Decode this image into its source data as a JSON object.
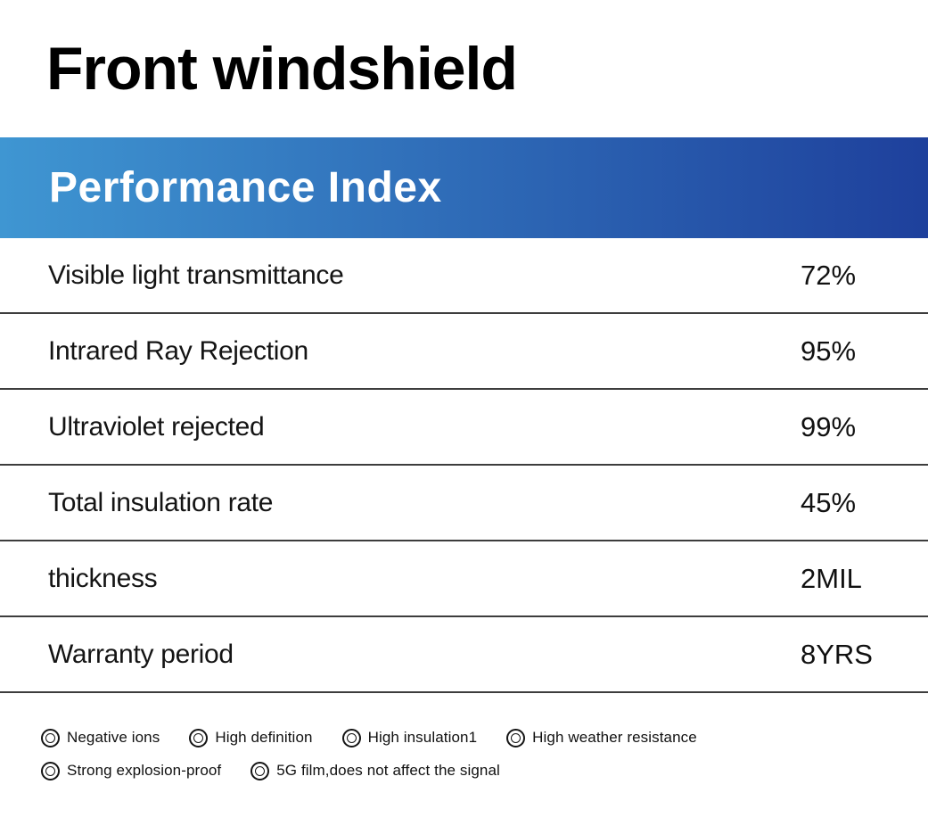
{
  "page": {
    "title": "Front windshield"
  },
  "header": {
    "title": "Performance Index",
    "gradient_left": "#3F96D2",
    "gradient_right": "#1E409C",
    "text_color": "#FFFFFF"
  },
  "table": {
    "divider_color": "#3D3D3D",
    "rows": [
      {
        "label": "Visible light transmittance",
        "value": "72%"
      },
      {
        "label": "Intrared Ray Rejection",
        "value": "95%"
      },
      {
        "label": "Ultraviolet rejected",
        "value": "99%"
      },
      {
        "label": "Total insulation rate",
        "value": "45%"
      },
      {
        "label": "thickness",
        "value": "2MIL"
      },
      {
        "label": "Warranty period",
        "value": "8YRS"
      }
    ]
  },
  "features": {
    "icon": "double-circle-icon",
    "items": [
      {
        "label": "Negative ions"
      },
      {
        "label": "High definition"
      },
      {
        "label": "High insulation1"
      },
      {
        "label": "High weather resistance"
      },
      {
        "label": "Strong explosion-proof"
      },
      {
        "label": "5G film,does not affect the signal"
      }
    ]
  }
}
